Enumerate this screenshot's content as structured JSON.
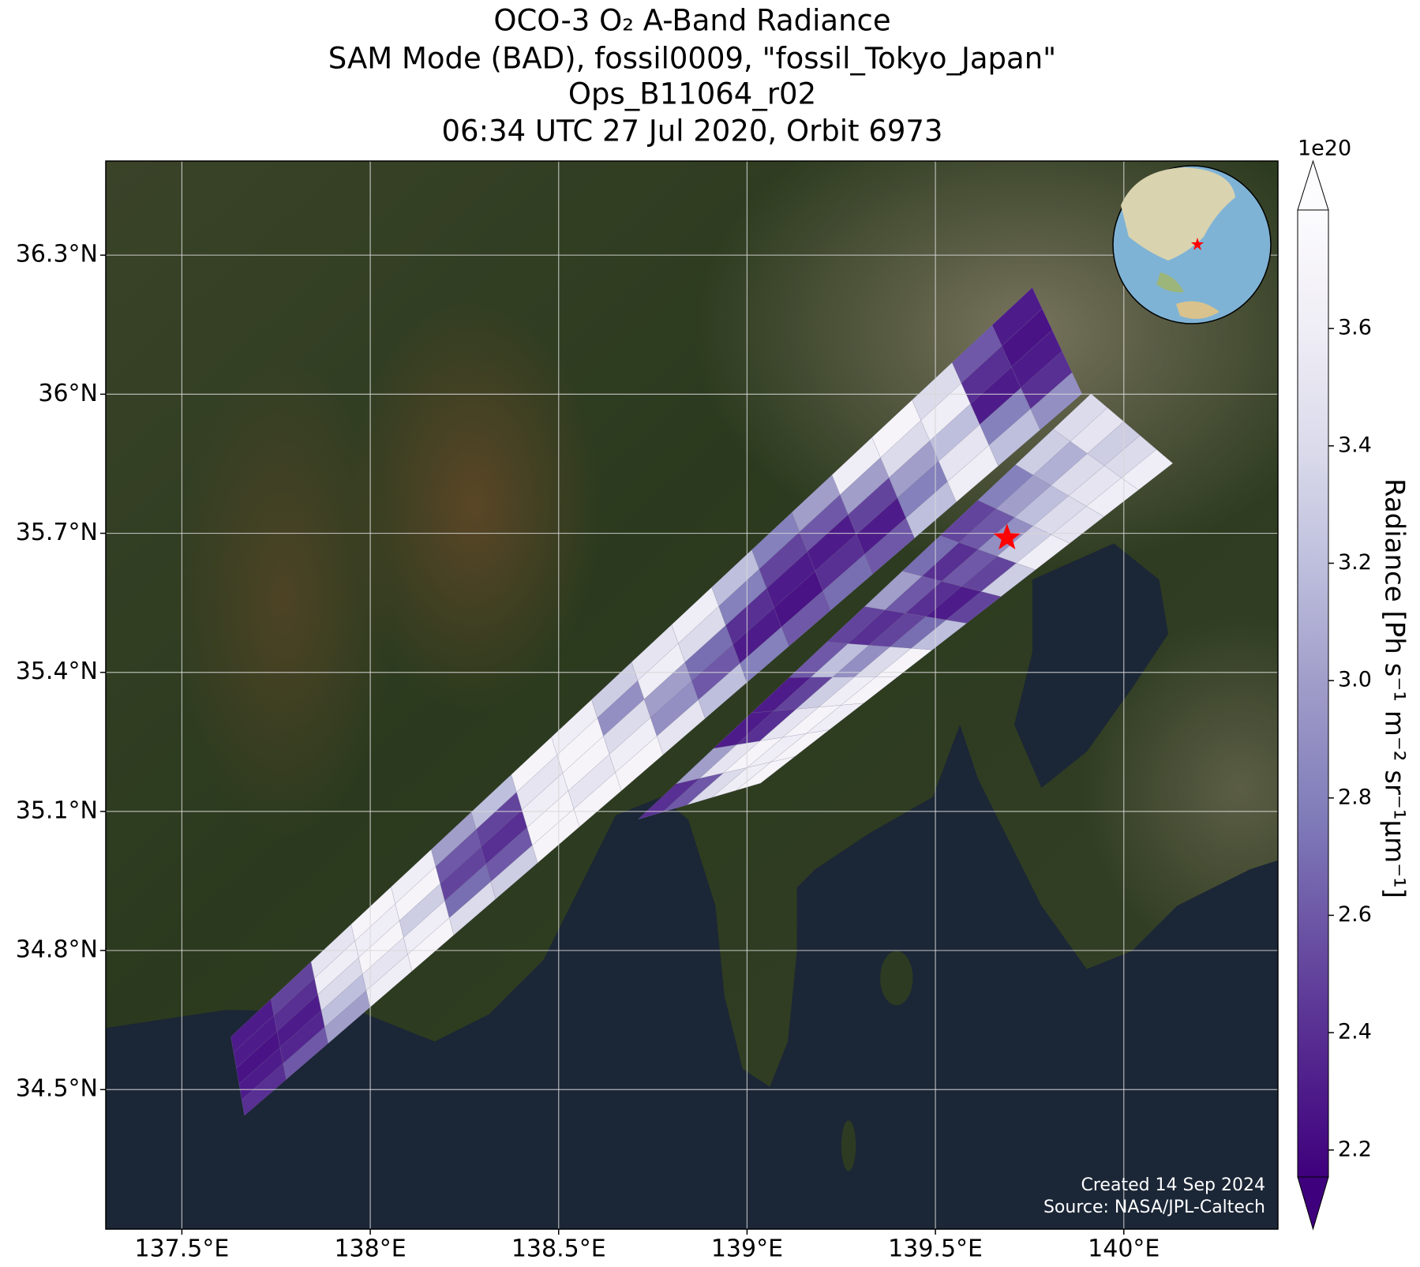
{
  "chart_data": {
    "type": "swath-map",
    "title": [
      "OCO-3 O₂ A-Band Radiance",
      "SAM Mode (BAD), fossil0009, \"fossil_Tokyo_Japan\"",
      "Ops_B11064_r02",
      "06:34 UTC 27 Jul 2020, Orbit 6973"
    ],
    "xlim": [
      137.298,
      140.409
    ],
    "ylim": [
      34.199,
      36.503
    ],
    "xticks": [
      {
        "value": 137.5,
        "label": "137.5°E"
      },
      {
        "value": 138,
        "label": "138°E"
      },
      {
        "value": 138.5,
        "label": "138.5°E"
      },
      {
        "value": 139,
        "label": "139°E"
      },
      {
        "value": 139.5,
        "label": "139.5°E"
      },
      {
        "value": 140,
        "label": "140°E"
      }
    ],
    "yticks": [
      {
        "value": 34.5,
        "label": "34.5°N"
      },
      {
        "value": 34.8,
        "label": "34.8°N"
      },
      {
        "value": 35.1,
        "label": "35.1°N"
      },
      {
        "value": 35.4,
        "label": "35.4°N"
      },
      {
        "value": 35.7,
        "label": "35.7°N"
      },
      {
        "value": 36,
        "label": "36°N"
      },
      {
        "value": 36.3,
        "label": "36.3°N"
      }
    ],
    "grid": true,
    "swaths": [
      {
        "corners": [
          [
            137.63,
            34.614
          ],
          [
            137.666,
            34.444
          ],
          [
            139.889,
            36.001
          ],
          [
            139.757,
            36.23
          ]
        ],
        "values": [
          [
            2.3,
            2.3,
            2.25,
            2.3,
            2.4
          ],
          [
            2.5,
            2.4,
            2.3,
            2.35,
            2.6
          ],
          [
            3.5,
            3.6,
            3.4,
            3.2,
            3.0
          ],
          [
            3.7,
            3.6,
            3.7,
            3.5,
            3.6
          ],
          [
            3.6,
            3.7,
            3.3,
            3.6,
            3.7
          ],
          [
            3.0,
            2.6,
            2.5,
            2.7,
            3.4
          ],
          [
            3.2,
            2.5,
            2.4,
            2.6,
            3.3
          ],
          [
            3.7,
            3.5,
            3.6,
            3.7,
            3.7
          ],
          [
            3.6,
            3.7,
            3.7,
            3.5,
            3.7
          ],
          [
            3.3,
            2.9,
            3.4,
            3.6,
            3.7
          ],
          [
            3.5,
            3.6,
            3.0,
            2.9,
            3.5
          ],
          [
            3.6,
            3.4,
            2.7,
            2.6,
            3.2
          ],
          [
            3.2,
            2.8,
            2.4,
            2.3,
            2.8
          ],
          [
            2.8,
            2.5,
            2.3,
            2.25,
            2.6
          ],
          [
            3.0,
            2.6,
            2.3,
            2.4,
            2.7
          ],
          [
            3.6,
            3.0,
            2.5,
            2.3,
            2.6
          ],
          [
            3.7,
            3.4,
            3.0,
            2.8,
            3.2
          ],
          [
            3.4,
            3.6,
            3.2,
            3.5,
            3.6
          ],
          [
            2.6,
            2.4,
            2.3,
            2.8,
            3.2
          ],
          [
            2.3,
            2.25,
            2.3,
            2.4,
            2.9
          ]
        ]
      },
      {
        "corners": [
          [
            138.711,
            35.083
          ],
          [
            139.036,
            35.161
          ],
          [
            140.13,
            35.851
          ],
          [
            139.913,
            36.001
          ]
        ],
        "values": [
          [
            2.4,
            2.6,
            3.4,
            3.6,
            3.7
          ],
          [
            3.0,
            3.5,
            3.7,
            3.6,
            3.7
          ],
          [
            2.3,
            2.4,
            3.5,
            3.7,
            3.6
          ],
          [
            2.3,
            2.5,
            3.3,
            3.6,
            3.7
          ],
          [
            2.6,
            3.2,
            2.9,
            3.4,
            3.7
          ],
          [
            2.5,
            2.4,
            2.5,
            2.7,
            3.2
          ],
          [
            3.0,
            2.6,
            2.4,
            2.3,
            2.5
          ],
          [
            2.7,
            2.4,
            2.6,
            2.5,
            3.3
          ],
          [
            2.5,
            2.6,
            2.9,
            3.3,
            3.6
          ],
          [
            2.8,
            3.0,
            3.2,
            3.4,
            3.5
          ],
          [
            3.3,
            3.1,
            3.4,
            3.5,
            3.6
          ],
          [
            3.4,
            3.5,
            3.3,
            3.4,
            3.6
          ]
        ]
      }
    ],
    "target": {
      "lon": 139.69,
      "lat": 35.69,
      "color": "#ff0000"
    },
    "colorbar": {
      "label": "Radiance [Ph s⁻¹ m⁻² sr⁻¹μm⁻¹]",
      "offset_label": "1e20",
      "lim": [
        2.154,
        3.802
      ],
      "ticks": [
        2.2,
        2.4,
        2.6,
        2.8,
        {
          "value": 3,
          "label": "3.0"
        },
        3.2,
        3.4,
        3.6
      ],
      "extend": "both",
      "colors": [
        "#3f007d",
        "#54278f",
        "#6a51a3",
        "#807dba",
        "#9e9ac8",
        "#bcbddc",
        "#dadaeb",
        "#efedf5",
        "#fcfbfd"
      ]
    },
    "annotations": [
      "Created 14 Sep 2024",
      "Source: NASA/JPL-Caltech"
    ]
  }
}
